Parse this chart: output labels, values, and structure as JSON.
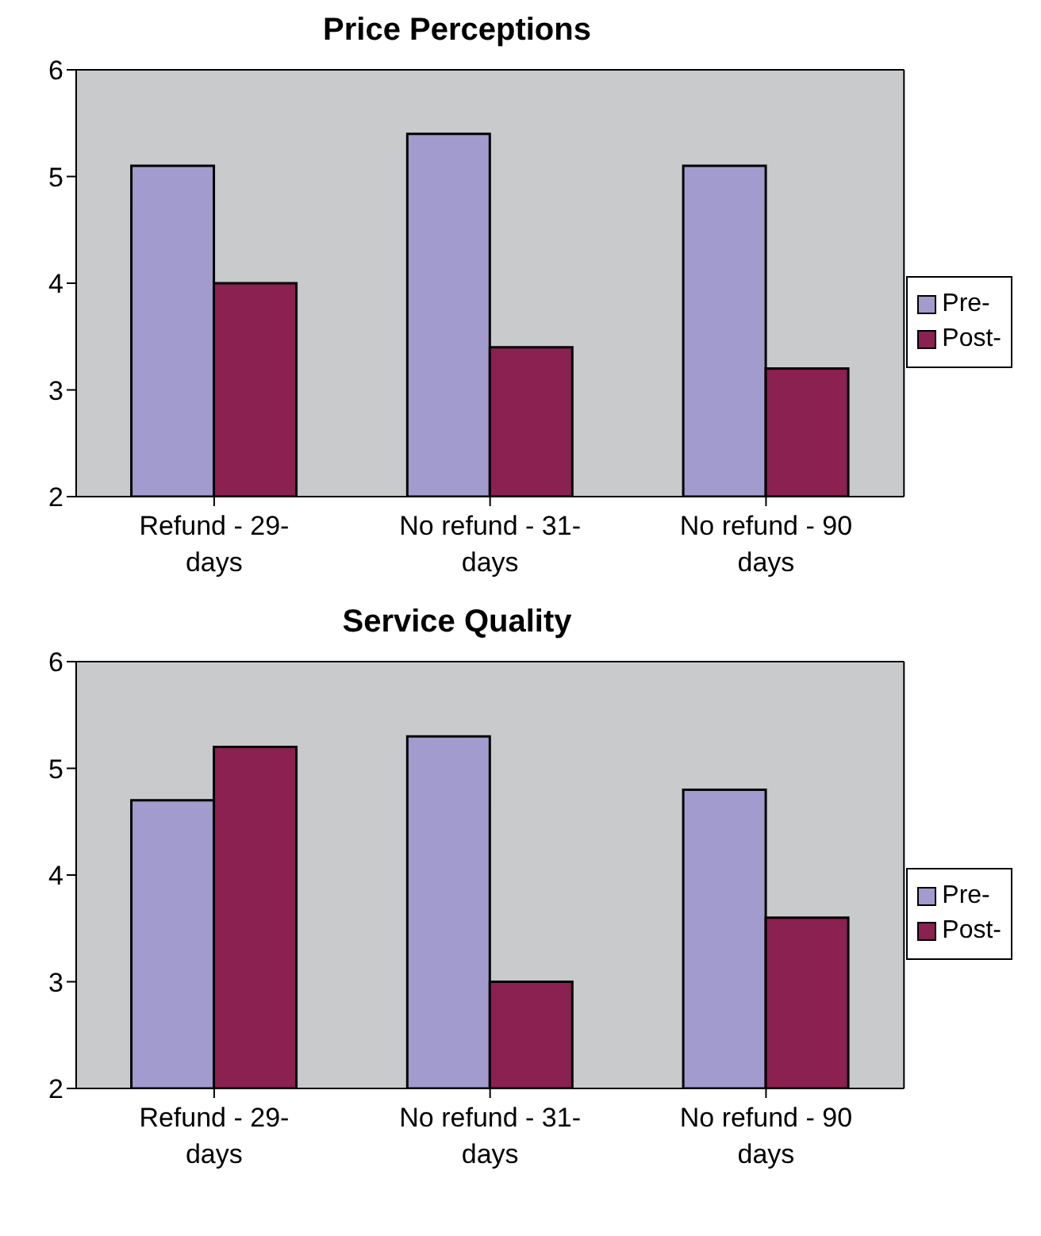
{
  "chart_data": [
    {
      "type": "bar",
      "title": "Price Perceptions",
      "categories": [
        "Refund - 29- days",
        "No refund - 31- days",
        "No refund - 90 days"
      ],
      "series": [
        {
          "name": "Pre-",
          "color": "#a29bcd",
          "values": [
            5.1,
            5.4,
            5.1
          ]
        },
        {
          "name": "Post-",
          "color": "#8a2150",
          "values": [
            4.0,
            3.4,
            3.2
          ]
        }
      ],
      "ylim": [
        2,
        6
      ],
      "yticks": [
        2,
        3,
        4,
        5,
        6
      ],
      "grid": false,
      "legend": "right"
    },
    {
      "type": "bar",
      "title": "Service Quality",
      "categories": [
        "Refund - 29- days",
        "No refund - 31- days",
        "No refund - 90 days"
      ],
      "series": [
        {
          "name": "Pre-",
          "color": "#a29bcd",
          "values": [
            4.7,
            5.3,
            4.8
          ]
        },
        {
          "name": "Post-",
          "color": "#8a2150",
          "values": [
            5.2,
            3.0,
            3.6
          ]
        }
      ],
      "ylim": [
        2,
        6
      ],
      "yticks": [
        2,
        3,
        4,
        5,
        6
      ],
      "grid": false,
      "legend": "right"
    }
  ]
}
